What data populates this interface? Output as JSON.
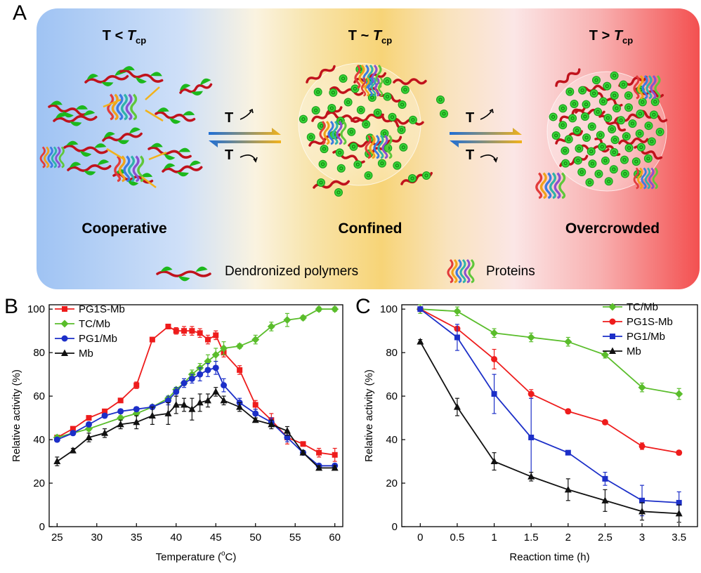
{
  "panel_a": {
    "letter": "A",
    "states": [
      {
        "title_prefix": "T < ",
        "title_T": "T",
        "title_sub": "cp",
        "label": "Cooperative"
      },
      {
        "title_prefix": "T ~ ",
        "title_T": "T",
        "title_sub": "cp",
        "label": "Confined"
      },
      {
        "title_prefix": "T > ",
        "title_T": "T",
        "title_sub": "cp",
        "label": "Overcrowded"
      }
    ],
    "arrow_label": "T",
    "legend": {
      "polymer": "Dendronized polymers",
      "protein": "Proteins"
    },
    "colors": {
      "cold": "#9fc3f3",
      "mid": "#f7d477",
      "hot": "#f35050",
      "polymer": "#c0121c",
      "dendron": "#1cb81c"
    }
  },
  "chart_data": [
    {
      "panel": "B",
      "type": "line",
      "xlabel": "Temperature (°C)",
      "xlabel_parts": [
        "Temperature (",
        "o",
        "C)"
      ],
      "ylabel": "Relative activity (%)",
      "xlim": [
        24,
        61
      ],
      "ylim": [
        0,
        102
      ],
      "xticks": [
        25,
        30,
        35,
        40,
        45,
        50,
        55,
        60
      ],
      "yticks": [
        0,
        20,
        40,
        60,
        80,
        100
      ],
      "legend_position": "top-left",
      "series": [
        {
          "name": "PG1S-Mb",
          "color": "#ee1c1c",
          "marker": "square",
          "x": [
            25,
            27,
            29,
            31,
            33,
            35,
            37,
            39,
            40,
            41,
            42,
            43,
            44,
            45,
            46,
            48,
            50,
            52,
            54,
            56,
            58,
            60
          ],
          "y": [
            41,
            45,
            50,
            53,
            58,
            65,
            86,
            92,
            90,
            90,
            90,
            89,
            86,
            88,
            80,
            72,
            56,
            49,
            41,
            38,
            34,
            33
          ],
          "err": [
            1,
            1,
            1,
            1,
            1,
            1.5,
            1,
            1,
            1.5,
            2,
            2,
            2,
            2,
            2,
            2,
            2,
            2,
            3,
            3,
            1,
            2,
            3
          ]
        },
        {
          "name": "TC/Mb",
          "color": "#5abd2b",
          "marker": "diamond",
          "x": [
            25,
            29,
            33,
            35,
            37,
            39,
            40,
            41,
            42,
            43,
            44,
            45,
            46,
            48,
            50,
            52,
            54,
            56,
            58,
            60
          ],
          "y": [
            41,
            45,
            50,
            52,
            55,
            59,
            63,
            66,
            70,
            73,
            76,
            79,
            82,
            83,
            86,
            92,
            95,
            96,
            100,
            100
          ],
          "err": [
            1,
            1,
            1,
            1,
            1,
            1,
            1,
            1,
            2,
            2,
            3,
            3,
            3,
            1,
            2,
            2,
            3,
            1,
            1,
            1
          ]
        },
        {
          "name": "PG1/Mb",
          "color": "#1c2fc8",
          "marker": "circle",
          "x": [
            25,
            27,
            29,
            31,
            33,
            35,
            37,
            39,
            40,
            41,
            42,
            43,
            44,
            45,
            46,
            48,
            50,
            52,
            54,
            56,
            58,
            60
          ],
          "y": [
            40,
            43,
            47,
            51,
            53,
            54,
            55,
            58,
            62,
            66,
            68,
            70,
            72,
            73,
            65,
            57,
            52,
            48,
            41,
            34,
            28,
            28
          ],
          "err": [
            1,
            1,
            1,
            1,
            1,
            1,
            1,
            2,
            2,
            2,
            2,
            3,
            3,
            3,
            3,
            2,
            2,
            2,
            2,
            1,
            1,
            1
          ]
        },
        {
          "name": "Mb",
          "color": "#111111",
          "marker": "triangle",
          "x": [
            25,
            27,
            29,
            31,
            33,
            35,
            37,
            39,
            40,
            41,
            42,
            43,
            44,
            45,
            46,
            48,
            50,
            52,
            54,
            56,
            58,
            60
          ],
          "y": [
            30,
            35,
            41,
            43,
            47,
            48,
            51,
            52,
            56,
            56,
            54,
            57,
            58,
            62,
            58,
            55,
            49,
            47,
            44,
            34,
            27,
            27
          ],
          "err": [
            2,
            1,
            2,
            2,
            2,
            3,
            4,
            5,
            4,
            3,
            5,
            4,
            3,
            2,
            2,
            2,
            1,
            2,
            2,
            1,
            1,
            1
          ]
        }
      ]
    },
    {
      "panel": "C",
      "type": "line",
      "xlabel": "Reaction time (h)",
      "ylabel": "Relative activity (%)",
      "xlim": [
        -0.25,
        3.75
      ],
      "ylim": [
        0,
        102
      ],
      "xticks": [
        0,
        0.5,
        1,
        1.5,
        2,
        2.5,
        3,
        3.5
      ],
      "xtick_labels": [
        "0",
        "0.5",
        "1",
        "1.5",
        "2",
        "2.5",
        "3",
        "3.5"
      ],
      "yticks": [
        0,
        20,
        40,
        60,
        80,
        100
      ],
      "legend_position": "top-right",
      "series": [
        {
          "name": "TC/Mb",
          "color": "#5abd2b",
          "marker": "diamond",
          "x": [
            0,
            0.5,
            1,
            1.5,
            2,
            2.5,
            3,
            3.5
          ],
          "y": [
            100,
            99,
            89,
            87,
            85,
            79,
            64,
            61
          ],
          "err": [
            2,
            2,
            2,
            2,
            2,
            1.5,
            2,
            2.5
          ]
        },
        {
          "name": "PG1S-Mb",
          "color": "#ee1c1c",
          "marker": "circle",
          "x": [
            0,
            0.5,
            1,
            1.5,
            2,
            2.5,
            3,
            3.5
          ],
          "y": [
            100,
            91,
            77,
            61,
            53,
            48,
            37,
            34
          ],
          "err": [
            1,
            1,
            4.5,
            2,
            1,
            1,
            1.5,
            1
          ]
        },
        {
          "name": "PG1/Mb",
          "color": "#1c2fc8",
          "marker": "square",
          "x": [
            0,
            0.5,
            1,
            1.5,
            2,
            2.5,
            3,
            3.5
          ],
          "y": [
            100,
            87,
            61,
            41,
            34,
            22,
            12,
            11
          ],
          "err": [
            1,
            6,
            9,
            18,
            1,
            3,
            7,
            5
          ]
        },
        {
          "name": "Mb",
          "color": "#111111",
          "marker": "triangle",
          "x": [
            0,
            0.5,
            1,
            1.5,
            2,
            2.5,
            3,
            3.5
          ],
          "y": [
            85,
            55,
            30,
            23,
            17,
            12,
            7,
            6
          ],
          "err": [
            1,
            4,
            4,
            2,
            5,
            5,
            4,
            4
          ]
        }
      ]
    }
  ]
}
